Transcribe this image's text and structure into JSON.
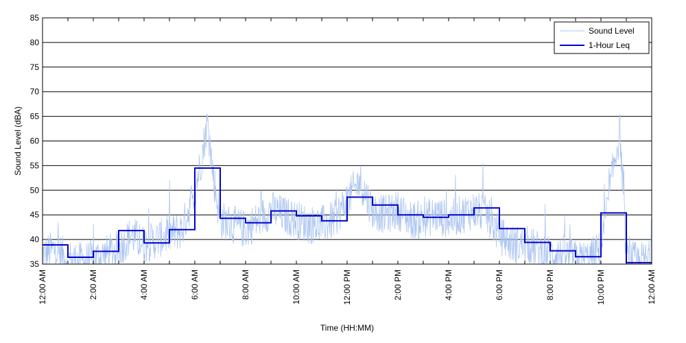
{
  "chart_data": {
    "type": "line",
    "xlabel": "Time (HH:MM)",
    "ylabel": "Sound Level (dBA)",
    "ylim": [
      35,
      85
    ],
    "yticks": [
      35,
      40,
      45,
      50,
      55,
      60,
      65,
      70,
      75,
      80,
      85
    ],
    "xlim_hours": [
      0,
      24
    ],
    "xticks": [
      {
        "hour": 0,
        "label": "12:00 AM"
      },
      {
        "hour": 2,
        "label": "2:00 AM"
      },
      {
        "hour": 4,
        "label": "4:00 AM"
      },
      {
        "hour": 6,
        "label": "6:00 AM"
      },
      {
        "hour": 8,
        "label": "8:00 AM"
      },
      {
        "hour": 10,
        "label": "10:00 AM"
      },
      {
        "hour": 12,
        "label": "12:00 PM"
      },
      {
        "hour": 14,
        "label": "2:00 PM"
      },
      {
        "hour": 16,
        "label": "4:00 PM"
      },
      {
        "hour": 18,
        "label": "6:00 PM"
      },
      {
        "hour": 20,
        "label": "8:00 PM"
      },
      {
        "hour": 22,
        "label": "10:00 PM"
      },
      {
        "hour": 24,
        "label": "12:00 AM"
      }
    ],
    "grid": "horizontal",
    "legend_position": "top-right",
    "series": [
      {
        "name": "Sound Level",
        "color": "#aac4f0",
        "x_hours": [
          0,
          0.5,
          1,
          1.5,
          2,
          2.5,
          3,
          3.5,
          4,
          4.5,
          5,
          5.5,
          6,
          6.25,
          6.5,
          6.75,
          7,
          7.5,
          8,
          8.5,
          9,
          9.5,
          10,
          10.5,
          11,
          11.5,
          12,
          12.5,
          13,
          13.5,
          14,
          14.5,
          15,
          15.5,
          16,
          16.5,
          17,
          17.5,
          18,
          18.5,
          19,
          19.5,
          20,
          20.5,
          21,
          21.5,
          22,
          22.5,
          22.75,
          23,
          23.5,
          24
        ],
        "values": [
          37,
          38,
          36,
          35.5,
          36,
          37,
          38,
          41,
          39,
          40,
          41,
          42,
          50,
          56,
          64,
          52,
          44,
          43,
          42,
          44,
          46,
          45,
          44,
          43,
          43,
          44,
          48,
          52,
          46,
          45,
          46,
          44,
          44,
          45,
          44,
          45,
          46,
          45,
          41,
          39,
          39,
          38,
          37,
          37,
          36,
          36,
          38,
          55,
          62,
          36,
          35.5,
          36
        ]
      },
      {
        "name": "1-Hour Leq",
        "color": "#0000d0",
        "step_values": [
          38.9,
          36.4,
          37.6,
          41.8,
          39.3,
          42.0,
          54.5,
          44.3,
          43.4,
          45.8,
          44.8,
          43.8,
          48.6,
          47.0,
          45.0,
          44.5,
          45.0,
          46.4,
          42.2,
          39.4,
          37.7,
          36.5,
          45.4,
          35.3
        ]
      }
    ]
  }
}
